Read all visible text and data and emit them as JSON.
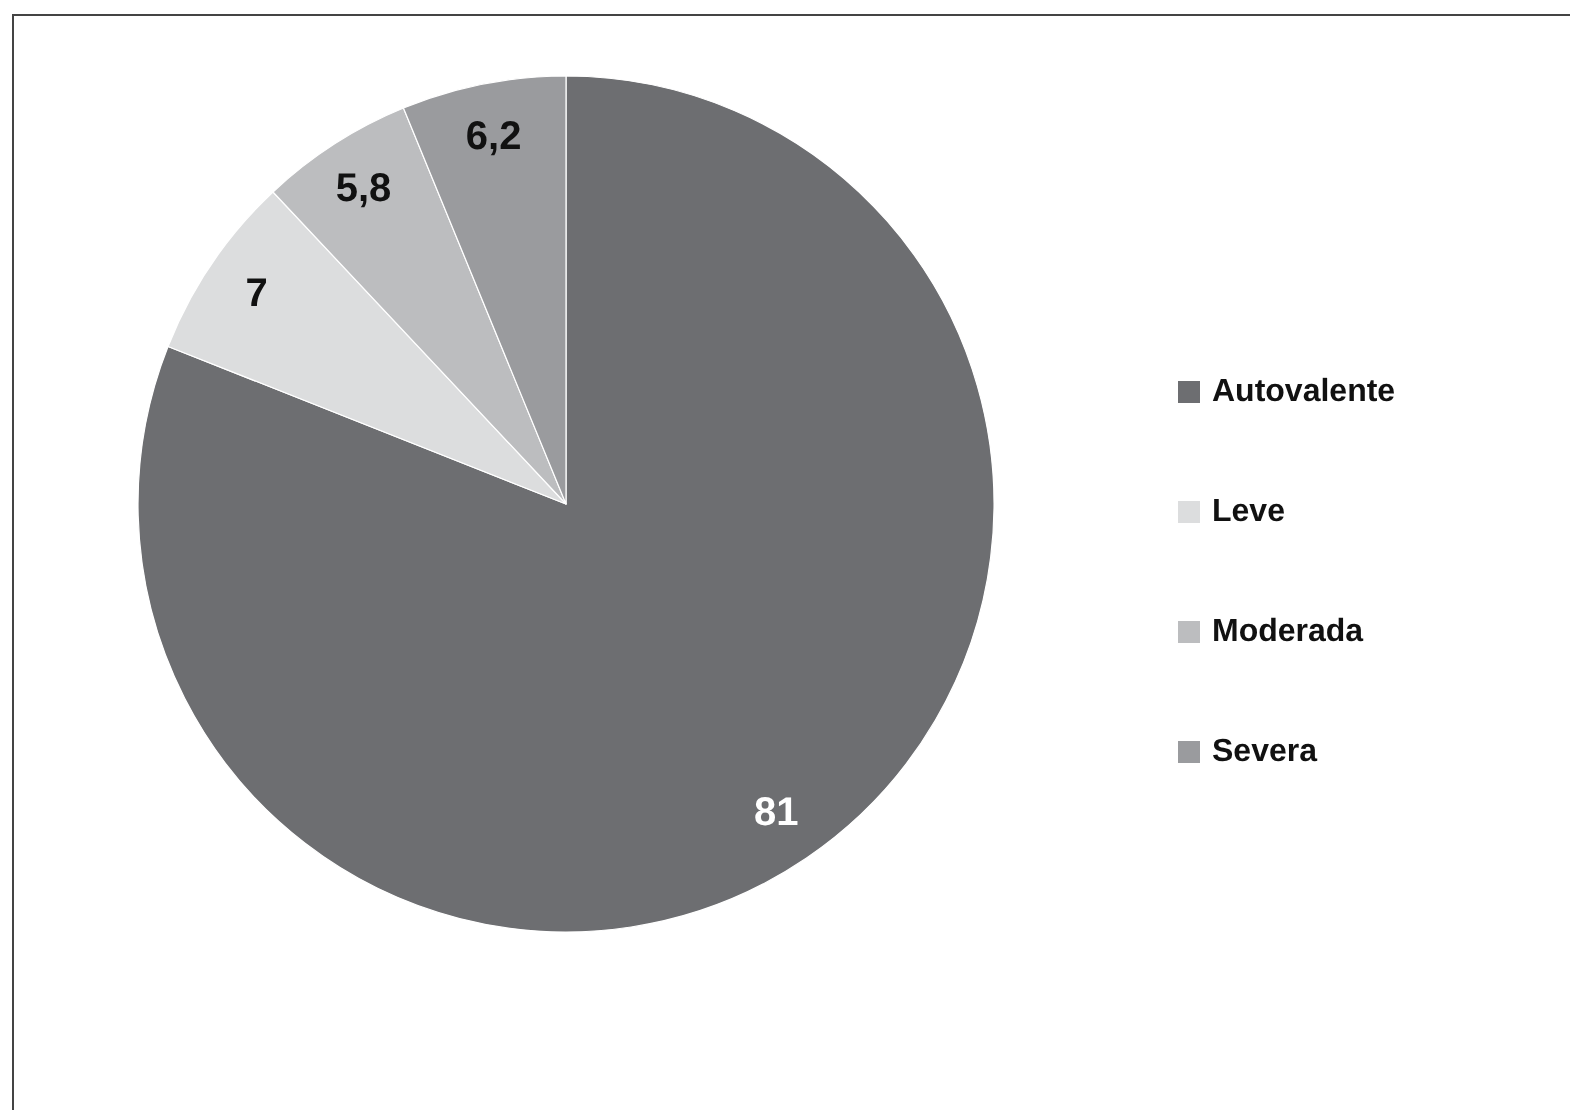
{
  "chart_data": {
    "type": "pie",
    "categories": [
      "Autovalente",
      "Leve",
      "Moderada",
      "Severa"
    ],
    "values": [
      81,
      7,
      5.8,
      6.2
    ],
    "colors": [
      "#6d6e71",
      "#dcddde",
      "#bcbdbf",
      "#9a9b9e"
    ],
    "value_labels": [
      "81",
      "7",
      "5,8",
      "6,2"
    ],
    "legend": "right"
  }
}
